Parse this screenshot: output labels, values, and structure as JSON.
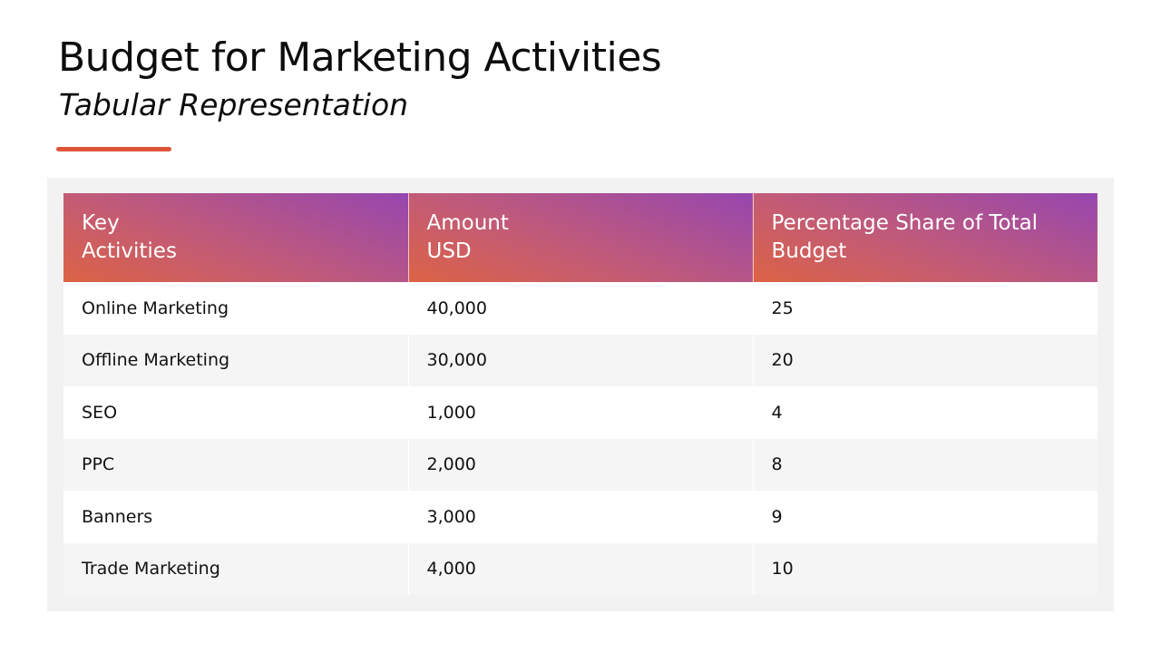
{
  "title": "Budget for Marketing Activities",
  "subtitle": "Tabular Representation",
  "colors": {
    "accent": "#e0553a",
    "header_gradient_start": "#dc6345",
    "header_gradient_end": "#9646b0",
    "panel": "#f2f2f2",
    "row_alt": "#f5f5f5"
  },
  "table": {
    "headers": [
      [
        "Key",
        "Activities"
      ],
      [
        "Amount",
        "USD"
      ],
      [
        "Percentage Share of Total",
        "Budget"
      ]
    ],
    "rows": [
      [
        "Online Marketing",
        "40,000",
        "25"
      ],
      [
        "Offline Marketing",
        "30,000",
        "20"
      ],
      [
        "SEO",
        "1,000",
        "4"
      ],
      [
        "PPC",
        "2,000",
        "8"
      ],
      [
        "Banners",
        "3,000",
        "9"
      ],
      [
        "Trade Marketing",
        "4,000",
        "10"
      ]
    ]
  }
}
